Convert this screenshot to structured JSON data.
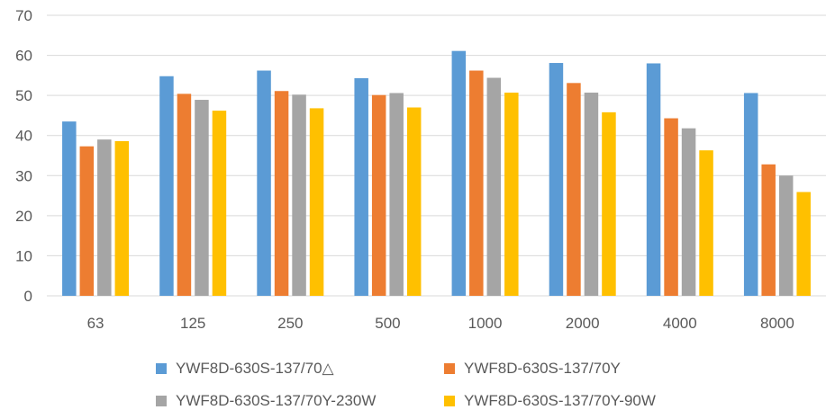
{
  "chart_data": {
    "type": "bar",
    "categories": [
      "63",
      "125",
      "250",
      "500",
      "1000",
      "2000",
      "4000",
      "8000"
    ],
    "series": [
      {
        "name": "YWF8D-630S-137/70△",
        "color": "#5B9BD5",
        "values": [
          43.5,
          54.8,
          56.2,
          54.3,
          61.1,
          58.1,
          58.0,
          50.6
        ]
      },
      {
        "name": "YWF8D-630S-137/70Y",
        "color": "#ED7D31",
        "values": [
          37.3,
          50.4,
          51.1,
          50.1,
          56.2,
          53.1,
          44.3,
          32.8
        ]
      },
      {
        "name": "YWF8D-630S-137/70Y-230W",
        "color": "#A5A5A5",
        "values": [
          39.0,
          48.9,
          50.2,
          50.6,
          54.4,
          50.7,
          41.8,
          30.0
        ]
      },
      {
        "name": "YWF8D-630S-137/70Y-90W",
        "color": "#FFC000",
        "values": [
          38.6,
          46.2,
          46.8,
          47.0,
          50.7,
          45.8,
          36.3,
          25.9
        ]
      }
    ],
    "yticks": [
      "0",
      "10",
      "20",
      "30",
      "40",
      "50",
      "60",
      "70"
    ],
    "ylim": [
      0,
      70
    ],
    "grid": true,
    "legend_position": "bottom",
    "title": "",
    "xlabel": "",
    "ylabel": ""
  }
}
